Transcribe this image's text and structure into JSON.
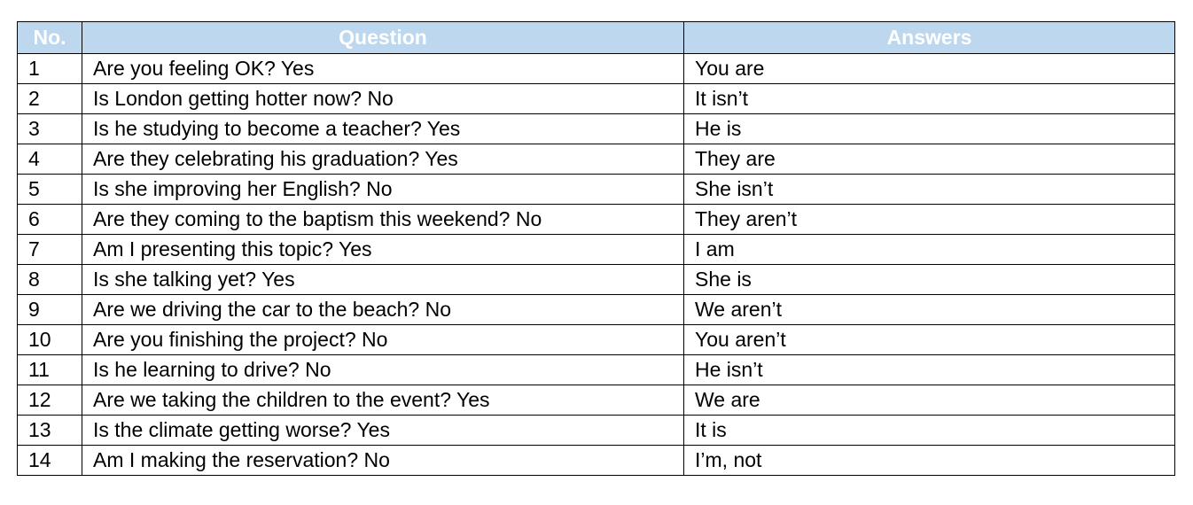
{
  "table": {
    "header": [
      "No.",
      "Question",
      "Answers"
    ],
    "rows": [
      [
        "1",
        "Are you feeling OK? Yes",
        "You are"
      ],
      [
        "2",
        "Is London getting hotter now? No",
        "It isn’t"
      ],
      [
        "3",
        "Is he studying to become a teacher? Yes",
        "He is"
      ],
      [
        "4",
        "Are they celebrating his graduation? Yes",
        "They are"
      ],
      [
        "5",
        "Is she improving her English? No",
        "She isn’t"
      ],
      [
        "6",
        "Are they coming to the baptism this weekend? No",
        "They aren’t"
      ],
      [
        "7",
        "Am I presenting this topic? Yes",
        "I am"
      ],
      [
        "8",
        "Is she talking yet? Yes",
        "She is"
      ],
      [
        "9",
        "Are we driving the car to the beach? No",
        "We aren’t"
      ],
      [
        "10",
        "Are you finishing the project? No",
        "You aren’t"
      ],
      [
        "11",
        "Is he learning to drive? No",
        "He isn’t"
      ],
      [
        "12",
        "Are we taking the children to the event? Yes",
        "We are"
      ],
      [
        "13",
        "Is the climate getting worse? Yes",
        "It is"
      ],
      [
        "14",
        "Am I making the reservation? No",
        "I’m, not"
      ]
    ]
  }
}
